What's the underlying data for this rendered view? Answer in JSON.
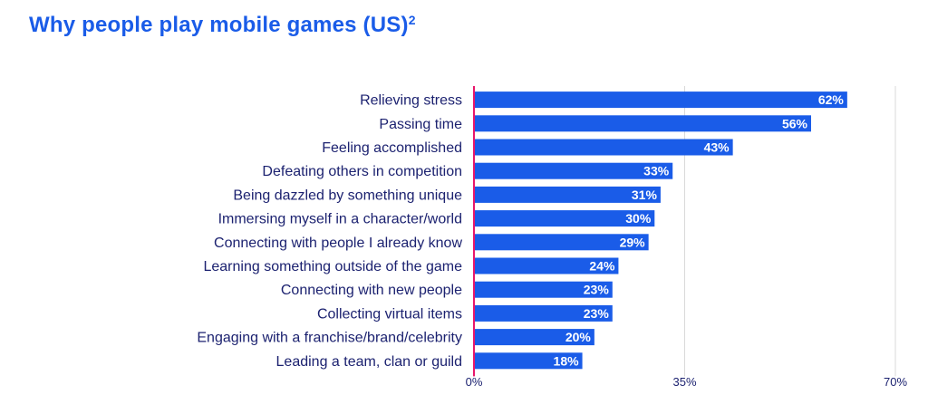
{
  "title": "Why people play mobile games (US)",
  "title_superscript": "2",
  "chart_data": {
    "type": "bar",
    "orientation": "horizontal",
    "title": "Why people play mobile games (US)²",
    "categories": [
      "Relieving stress",
      "Passing time",
      "Feeling accomplished",
      "Defeating others in competition",
      "Being dazzled by something unique",
      "Immersing myself in a character/world",
      "Connecting with people I already know",
      "Learning something outside of the game",
      "Connecting with new people",
      "Collecting virtual items",
      "Engaging with a franchise/brand/celebrity",
      "Leading a team, clan or guild"
    ],
    "values": [
      62,
      56,
      43,
      33,
      31,
      30,
      29,
      24,
      23,
      23,
      20,
      18
    ],
    "value_labels": [
      "62%",
      "56%",
      "43%",
      "33%",
      "31%",
      "30%",
      "29%",
      "24%",
      "23%",
      "23%",
      "20%",
      "18%"
    ],
    "xlim": [
      0,
      70
    ],
    "x_ticks": [
      0,
      35,
      70
    ],
    "x_tick_labels": [
      "0%",
      "35%",
      "70%"
    ],
    "xlabel": "",
    "ylabel": "",
    "grid": true,
    "colors": {
      "bar": "#1a5ce8",
      "bar_label": "#ffffff",
      "category_text": "#1c2270",
      "axis_line": "#e8176b",
      "grid": "#d9d9d9",
      "title": "#1a5ce8",
      "tick_text": "#1c2270"
    }
  }
}
